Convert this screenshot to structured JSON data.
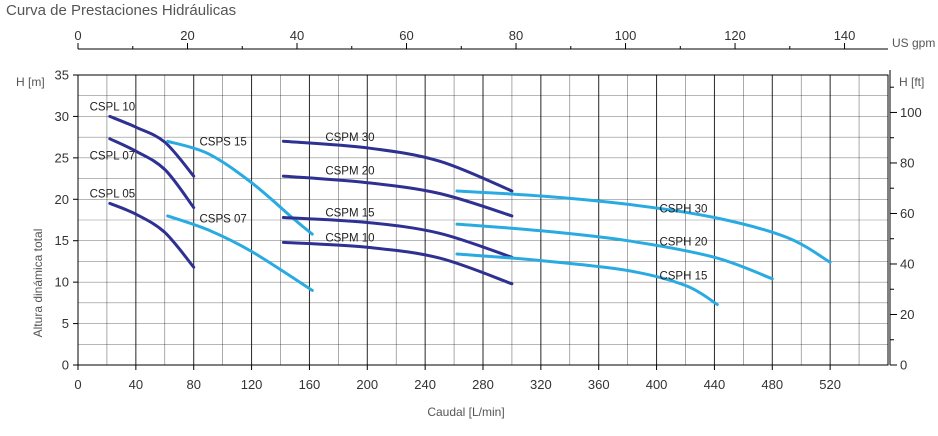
{
  "title": "Curva de Prestaciones Hidráulicas",
  "colors": {
    "dark": "#2e3192",
    "light": "#29abe2",
    "grid": "#000000",
    "text": "#333333",
    "label_text": "#555555"
  },
  "chart_data": {
    "type": "line",
    "title": "Curva de Prestaciones Hidráulicas",
    "xlabel": "Caudal [L/min]",
    "ylabel": "Altura dinámica total",
    "ylabel_left_unit": "H [m]",
    "ylabel_right_unit": "H [ft]",
    "xlabel_top_unit": "US gpm",
    "xlim": [
      0,
      560
    ],
    "ylim": [
      0,
      35
    ],
    "xticks": [
      "0",
      "40",
      "80",
      "120",
      "160",
      "200",
      "240",
      "280",
      "320",
      "360",
      "400",
      "440",
      "480",
      "520"
    ],
    "yticks": [
      "0",
      "5",
      "10",
      "15",
      "20",
      "25",
      "30",
      "35"
    ],
    "top_ticks": [
      "0",
      "20",
      "40",
      "60",
      "80",
      "100",
      "120",
      "140"
    ],
    "right_ticks": [
      "0",
      "20",
      "40",
      "60",
      "80",
      "100"
    ],
    "grid": true,
    "series": [
      {
        "name": "CSPL 10",
        "color": "dark",
        "points": [
          [
            22,
            30.0
          ],
          [
            40,
            28.7
          ],
          [
            60,
            26.9
          ],
          [
            80,
            22.8
          ]
        ]
      },
      {
        "name": "CSPL 07",
        "color": "dark",
        "points": [
          [
            22,
            27.3
          ],
          [
            40,
            25.8
          ],
          [
            60,
            23.6
          ],
          [
            80,
            19.0
          ]
        ]
      },
      {
        "name": "CSPL 05",
        "color": "dark",
        "points": [
          [
            22,
            19.5
          ],
          [
            40,
            18.2
          ],
          [
            60,
            16.0
          ],
          [
            80,
            11.8
          ]
        ]
      },
      {
        "name": "CSPS 15",
        "color": "light",
        "points": [
          [
            62,
            27.0
          ],
          [
            90,
            25.5
          ],
          [
            120,
            22.0
          ],
          [
            150,
            17.5
          ],
          [
            162,
            15.8
          ]
        ]
      },
      {
        "name": "CSPS 07",
        "color": "light",
        "points": [
          [
            62,
            18.0
          ],
          [
            90,
            16.3
          ],
          [
            120,
            13.7
          ],
          [
            162,
            9.0
          ]
        ]
      },
      {
        "name": "CSPM 30",
        "color": "dark",
        "points": [
          [
            142,
            27.0
          ],
          [
            200,
            26.2
          ],
          [
            250,
            24.6
          ],
          [
            300,
            21.0
          ]
        ]
      },
      {
        "name": "CSPM 20",
        "color": "dark",
        "points": [
          [
            142,
            22.8
          ],
          [
            200,
            22.0
          ],
          [
            250,
            20.7
          ],
          [
            300,
            18.0
          ]
        ]
      },
      {
        "name": "CSPM 15",
        "color": "dark",
        "points": [
          [
            142,
            17.8
          ],
          [
            200,
            17.2
          ],
          [
            250,
            15.9
          ],
          [
            300,
            13.0
          ]
        ]
      },
      {
        "name": "CSPM 10",
        "color": "dark",
        "points": [
          [
            142,
            14.8
          ],
          [
            200,
            14.2
          ],
          [
            250,
            12.9
          ],
          [
            300,
            9.8
          ]
        ]
      },
      {
        "name": "CSPH 30",
        "color": "light",
        "points": [
          [
            262,
            21.0
          ],
          [
            320,
            20.4
          ],
          [
            380,
            19.4
          ],
          [
            440,
            17.8
          ],
          [
            490,
            15.4
          ],
          [
            520,
            12.4
          ]
        ]
      },
      {
        "name": "CSPH 20",
        "color": "light",
        "points": [
          [
            262,
            17.0
          ],
          [
            320,
            16.2
          ],
          [
            380,
            15.0
          ],
          [
            440,
            13.0
          ],
          [
            480,
            10.4
          ]
        ]
      },
      {
        "name": "CSPH 15",
        "color": "light",
        "points": [
          [
            262,
            13.4
          ],
          [
            320,
            12.6
          ],
          [
            380,
            11.4
          ],
          [
            420,
            9.6
          ],
          [
            442,
            7.3
          ]
        ]
      }
    ],
    "labels": [
      {
        "text": "CSPL 10",
        "x": 8,
        "y": 31.2
      },
      {
        "text": "CSPL 07",
        "x": 8,
        "y": 25.3
      },
      {
        "text": "CSPL 05",
        "x": 8,
        "y": 20.7
      },
      {
        "text": "CSPS 15",
        "x": 84,
        "y": 27.0
      },
      {
        "text": "CSPS 07",
        "x": 84,
        "y": 17.7
      },
      {
        "text": "CSPM 30",
        "x": 171,
        "y": 27.5
      },
      {
        "text": "CSPM 20",
        "x": 171,
        "y": 23.5
      },
      {
        "text": "CSPM 15",
        "x": 171,
        "y": 18.4
      },
      {
        "text": "CSPM 10",
        "x": 171,
        "y": 15.4
      },
      {
        "text": "CSPH 30",
        "x": 402,
        "y": 18.9
      },
      {
        "text": "CSPH 20",
        "x": 402,
        "y": 14.9
      },
      {
        "text": "CSPH 15",
        "x": 402,
        "y": 10.8
      }
    ]
  }
}
